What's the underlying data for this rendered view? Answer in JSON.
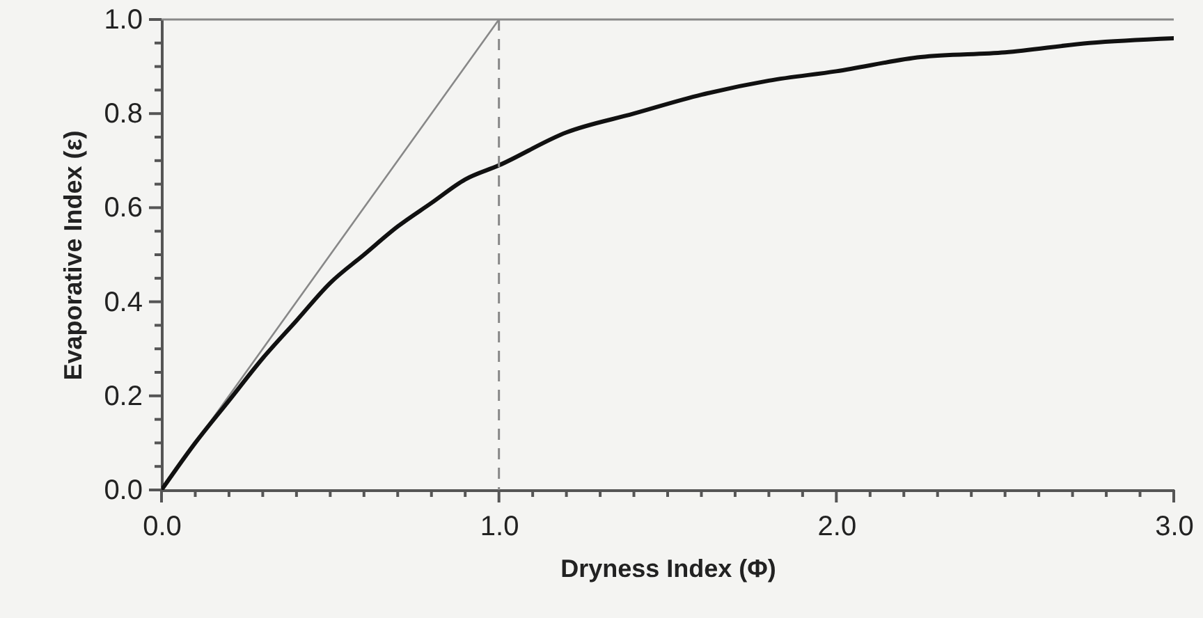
{
  "chart_data": {
    "type": "line",
    "xlabel": "Dryness Index (Φ)",
    "ylabel": "Evaporative Index (ε)",
    "xlim": [
      0,
      3
    ],
    "ylim": [
      0,
      1
    ],
    "xticks": [
      {
        "value": 0,
        "label": "0.0"
      },
      {
        "value": 0.1,
        "label": null
      },
      {
        "value": 0.2,
        "label": null
      },
      {
        "value": 0.3,
        "label": null
      },
      {
        "value": 0.4,
        "label": null
      },
      {
        "value": 0.5,
        "label": null
      },
      {
        "value": 0.6,
        "label": null
      },
      {
        "value": 0.7,
        "label": null
      },
      {
        "value": 0.8,
        "label": null
      },
      {
        "value": 0.9,
        "label": null
      },
      {
        "value": 1,
        "label": "1.0"
      },
      {
        "value": 1.1,
        "label": null
      },
      {
        "value": 1.2,
        "label": null
      },
      {
        "value": 1.3,
        "label": null
      },
      {
        "value": 1.4,
        "label": null
      },
      {
        "value": 1.5,
        "label": null
      },
      {
        "value": 1.6,
        "label": null
      },
      {
        "value": 1.7,
        "label": null
      },
      {
        "value": 1.8,
        "label": null
      },
      {
        "value": 1.9,
        "label": null
      },
      {
        "value": 2,
        "label": "2.0"
      },
      {
        "value": 2.1,
        "label": null
      },
      {
        "value": 2.2,
        "label": null
      },
      {
        "value": 2.3,
        "label": null
      },
      {
        "value": 2.4,
        "label": null
      },
      {
        "value": 2.5,
        "label": null
      },
      {
        "value": 2.6,
        "label": null
      },
      {
        "value": 2.7,
        "label": null
      },
      {
        "value": 2.8,
        "label": null
      },
      {
        "value": 2.9,
        "label": null
      },
      {
        "value": 3,
        "label": "3.0"
      }
    ],
    "yticks": [
      {
        "value": 0,
        "label": "0.0"
      },
      {
        "value": 0.05,
        "label": null
      },
      {
        "value": 0.1,
        "label": null
      },
      {
        "value": 0.15,
        "label": null
      },
      {
        "value": 0.2,
        "label": "0.2"
      },
      {
        "value": 0.25,
        "label": null
      },
      {
        "value": 0.3,
        "label": null
      },
      {
        "value": 0.35,
        "label": null
      },
      {
        "value": 0.4,
        "label": "0.4"
      },
      {
        "value": 0.45,
        "label": null
      },
      {
        "value": 0.5,
        "label": null
      },
      {
        "value": 0.55,
        "label": null
      },
      {
        "value": 0.6,
        "label": "0.6"
      },
      {
        "value": 0.65,
        "label": null
      },
      {
        "value": 0.7,
        "label": null
      },
      {
        "value": 0.75,
        "label": null
      },
      {
        "value": 0.8,
        "label": "0.8"
      },
      {
        "value": 0.85,
        "label": null
      },
      {
        "value": 0.9,
        "label": null
      },
      {
        "value": 0.95,
        "label": null
      },
      {
        "value": 1,
        "label": "1.0"
      }
    ],
    "series": [
      {
        "color": "#888888",
        "x": [
          0,
          1
        ],
        "values": [
          0,
          1
        ]
      },
      {
        "color": "#111111",
        "x": [
          0,
          0.1,
          0.2,
          0.3,
          0.4,
          0.5,
          0.6,
          0.7,
          0.8,
          0.9,
          1.0,
          1.2,
          1.4,
          1.6,
          1.8,
          2.0,
          2.25,
          2.5,
          2.75,
          3.0
        ],
        "values": [
          0,
          0.1,
          0.19,
          0.28,
          0.36,
          0.44,
          0.5,
          0.56,
          0.61,
          0.66,
          0.69,
          0.76,
          0.8,
          0.84,
          0.87,
          0.89,
          0.92,
          0.93,
          0.95,
          0.96
        ]
      }
    ],
    "ref_lines": [
      {
        "axis": "y",
        "value": 1,
        "color": "#888888",
        "line_style": "solid"
      },
      {
        "axis": "x",
        "value": 1,
        "color": "#888888",
        "line_style": "dashed"
      }
    ],
    "grid": false,
    "marker": "none"
  }
}
